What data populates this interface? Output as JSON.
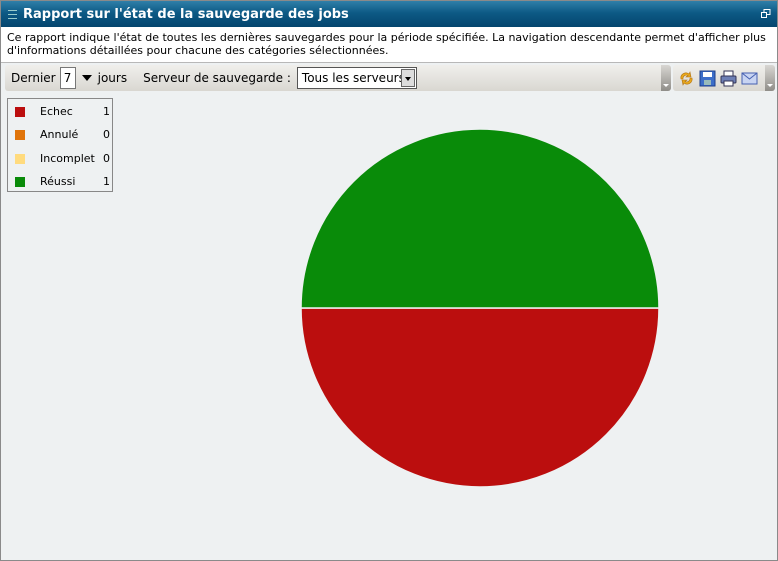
{
  "window": {
    "title": "Rapport sur l'état de la sauvegarde des jobs"
  },
  "description": "Ce rapport indique l'état de toutes les dernières sauvegardes pour la période spécifiée. La navigation descendante permet d'afficher plus d'informations détaillées pour chacune des catégories sélectionnées.",
  "toolbar": {
    "last_label": "Dernier",
    "days_value": "7",
    "days_label": "jours",
    "server_label": "Serveur de sauvegarde :",
    "server_value": "Tous les serveurs"
  },
  "actions": {
    "icons": [
      "refresh-icon",
      "save-icon",
      "print-icon",
      "email-icon"
    ]
  },
  "chart_data": {
    "type": "pie",
    "legend_placement": "top-left",
    "series": [
      {
        "name": "Echec",
        "value": 1,
        "color": "#bb0e0e"
      },
      {
        "name": "Annulé",
        "value": 0,
        "color": "#e0740a"
      },
      {
        "name": "Incomplet",
        "value": 0,
        "color": "#ffdb7e"
      },
      {
        "name": "Réussi",
        "value": 1,
        "color": "#098b09"
      }
    ]
  }
}
